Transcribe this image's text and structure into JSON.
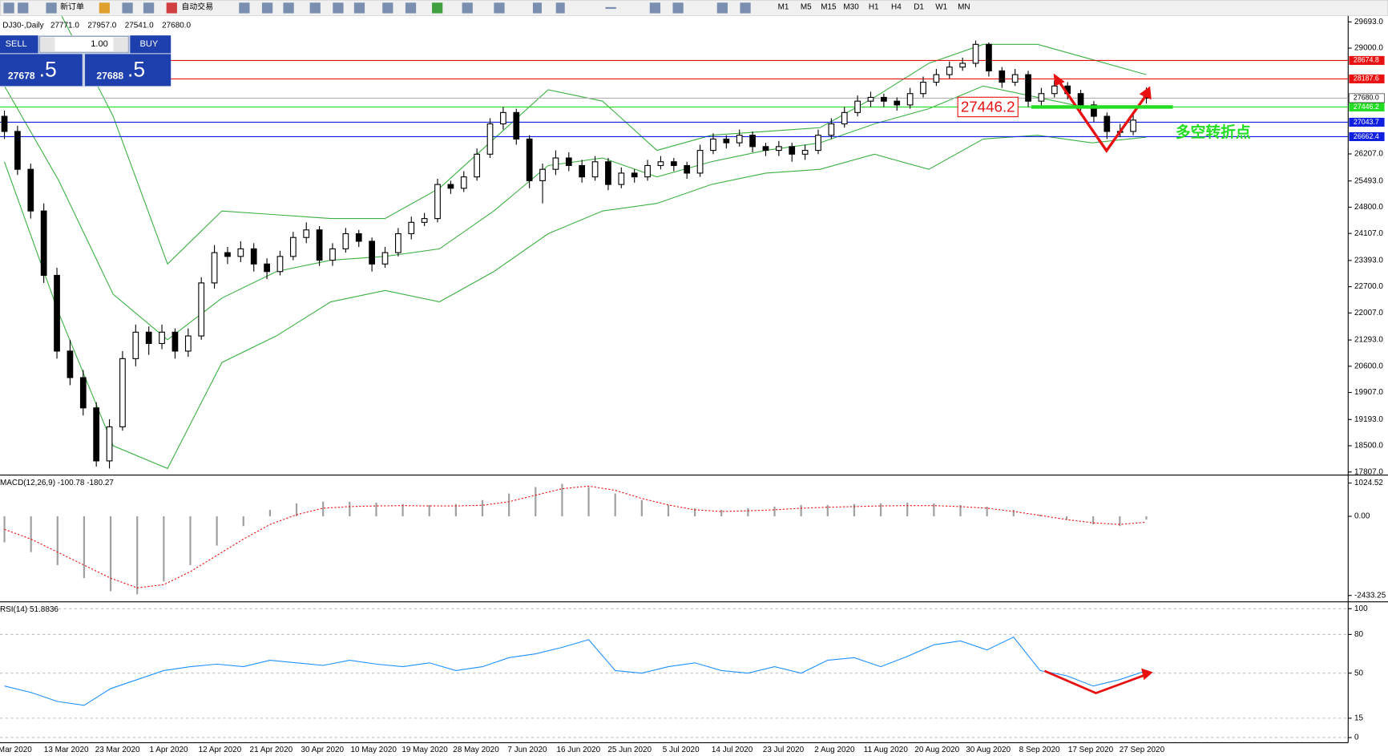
{
  "toolbar": {
    "new_order": "新订单",
    "auto_trading": "自动交易",
    "timeframes": [
      "M1",
      "M5",
      "M15",
      "M30",
      "H1",
      "H4",
      "D1",
      "W1",
      "MN"
    ]
  },
  "trade_panel": {
    "sell": "SELL",
    "buy": "BUY",
    "lots": "1.00",
    "bid": "27678",
    "bid_fraction": ".5",
    "ask": "27688",
    "ask_fraction": ".5"
  },
  "chart_data": [
    {
      "type": "candlestick",
      "title": "DJ30-,Daily",
      "ohlc_labels": [
        {
          "value": 27771,
          "label": "27771.0"
        },
        {
          "value": 27957,
          "label": "27957.0"
        },
        {
          "value": 27541,
          "label": "27541.0"
        },
        {
          "value": 27680,
          "label": "27680.0"
        }
      ],
      "candles": [
        [
          27200,
          27350,
          26600,
          26800
        ],
        [
          26800,
          26950,
          25650,
          25800
        ],
        [
          25800,
          25950,
          24500,
          24700
        ],
        [
          24700,
          24900,
          22800,
          23000
        ],
        [
          23000,
          23200,
          20800,
          21000
        ],
        [
          21000,
          21300,
          20100,
          20300
        ],
        [
          20300,
          20500,
          19300,
          19500
        ],
        [
          19500,
          19650,
          17950,
          18100
        ],
        [
          18100,
          19200,
          17900,
          19000
        ],
        [
          19000,
          21000,
          18900,
          20800
        ],
        [
          20800,
          21700,
          20600,
          21500
        ],
        [
          21500,
          21650,
          20900,
          21200
        ],
        [
          21200,
          21700,
          21050,
          21500
        ],
        [
          21500,
          21600,
          20800,
          21000
        ],
        [
          21000,
          21600,
          20850,
          21400
        ],
        [
          21400,
          22950,
          21300,
          22800
        ],
        [
          22800,
          23800,
          22650,
          23600
        ],
        [
          23600,
          23750,
          23300,
          23500
        ],
        [
          23500,
          23900,
          23350,
          23700
        ],
        [
          23700,
          23850,
          23100,
          23300
        ],
        [
          23300,
          23450,
          22900,
          23100
        ],
        [
          23100,
          23650,
          23000,
          23500
        ],
        [
          23500,
          24150,
          23400,
          24000
        ],
        [
          24000,
          24400,
          23850,
          24200
        ],
        [
          24200,
          24300,
          23250,
          23400
        ],
        [
          23400,
          23850,
          23250,
          23700
        ],
        [
          23700,
          24250,
          23600,
          24100
        ],
        [
          24100,
          24200,
          23750,
          23900
        ],
        [
          23900,
          24000,
          23100,
          23300
        ],
        [
          23300,
          23750,
          23200,
          23600
        ],
        [
          23600,
          24250,
          23500,
          24100
        ],
        [
          24100,
          24550,
          23950,
          24400
        ],
        [
          24400,
          24650,
          24300,
          24500
        ],
        [
          24500,
          25550,
          24400,
          25400
        ],
        [
          25400,
          25500,
          25150,
          25300
        ],
        [
          25300,
          25750,
          25200,
          25600
        ],
        [
          25600,
          26350,
          25500,
          26200
        ],
        [
          26200,
          27150,
          26100,
          27000
        ],
        [
          27000,
          27450,
          26850,
          27300
        ],
        [
          27300,
          27400,
          26450,
          26600
        ],
        [
          26600,
          26700,
          25300,
          25500
        ],
        [
          25500,
          25950,
          24900,
          25800
        ],
        [
          25800,
          26300,
          25650,
          26100
        ],
        [
          26100,
          26250,
          25750,
          25900
        ],
        [
          25900,
          26050,
          25450,
          25600
        ],
        [
          25600,
          26150,
          25500,
          26000
        ],
        [
          26000,
          26100,
          25250,
          25400
        ],
        [
          25400,
          25850,
          25300,
          25700
        ],
        [
          25700,
          25800,
          25450,
          25600
        ],
        [
          25600,
          26050,
          25500,
          25900
        ],
        [
          25900,
          26150,
          25800,
          26000
        ],
        [
          26000,
          26100,
          25750,
          25900
        ],
        [
          25900,
          26000,
          25550,
          25700
        ],
        [
          25700,
          26450,
          25600,
          26300
        ],
        [
          26300,
          26750,
          26200,
          26600
        ],
        [
          26600,
          26700,
          26350,
          26500
        ],
        [
          26500,
          26850,
          26400,
          26700
        ],
        [
          26700,
          26800,
          26250,
          26400
        ],
        [
          26400,
          26500,
          26150,
          26300
        ],
        [
          26300,
          26550,
          26150,
          26400
        ],
        [
          26400,
          26500,
          26000,
          26200
        ],
        [
          26200,
          26450,
          26050,
          26300
        ],
        [
          26300,
          26850,
          26200,
          26700
        ],
        [
          26700,
          27150,
          26600,
          27000
        ],
        [
          27000,
          27450,
          26900,
          27300
        ],
        [
          27300,
          27750,
          27200,
          27600
        ],
        [
          27600,
          27850,
          27450,
          27700
        ],
        [
          27700,
          27800,
          27450,
          27600
        ],
        [
          27600,
          27700,
          27350,
          27500
        ],
        [
          27500,
          27950,
          27400,
          27800
        ],
        [
          27800,
          28250,
          27700,
          28100
        ],
        [
          28100,
          28450,
          28000,
          28300
        ],
        [
          28300,
          28650,
          28200,
          28500
        ],
        [
          28500,
          28750,
          28400,
          28600
        ],
        [
          28600,
          29200,
          28500,
          29100
        ],
        [
          29100,
          29150,
          28250,
          28400
        ],
        [
          28400,
          28500,
          27950,
          28100
        ],
        [
          28100,
          28450,
          28000,
          28300
        ],
        [
          28300,
          28400,
          27450,
          27600
        ],
        [
          27600,
          27950,
          27450,
          27800
        ],
        [
          27800,
          28150,
          27700,
          28000
        ],
        [
          28000,
          28100,
          27650,
          27800
        ],
        [
          27800,
          27900,
          27350,
          27500
        ],
        [
          27500,
          27600,
          27050,
          27200
        ],
        [
          27200,
          27300,
          26600,
          26800
        ],
        [
          26800,
          27000,
          26650,
          26800
        ],
        [
          26800,
          27250,
          26700,
          27100
        ],
        [
          27771,
          27957,
          27541,
          27680
        ]
      ],
      "bollinger": {
        "color": "#3cb043",
        "upper": [
          30500,
          30000,
          27200,
          23300,
          24700,
          24600,
          24500,
          24500,
          25300,
          26600,
          27900,
          27600,
          26300,
          26700,
          26800,
          26900,
          27700,
          28600,
          29100,
          29100,
          28700,
          28300
        ],
        "middle": [
          28000,
          25500,
          22500,
          21300,
          22400,
          23100,
          23400,
          23500,
          23700,
          24700,
          25900,
          26100,
          25600,
          26000,
          26300,
          26500,
          27000,
          27400,
          28000,
          27700,
          27400,
          27480
        ],
        "lower": [
          26000,
          22000,
          18500,
          17900,
          20700,
          21400,
          22300,
          22600,
          22300,
          23100,
          24100,
          24700,
          24900,
          25400,
          25700,
          25800,
          26200,
          25800,
          26600,
          26700,
          26500,
          26650
        ]
      },
      "levels": [
        {
          "value": 28674.8,
          "color": "#e81010"
        },
        {
          "value": 28187.6,
          "color": "#e81010"
        },
        {
          "value": 27446.2,
          "color": "#22dd22"
        },
        {
          "value": 27043.7,
          "color": "#1020e0"
        },
        {
          "value": 26662.4,
          "color": "#1020e0"
        },
        {
          "value": 27680,
          "label": "27680.0",
          "color": "#b0b0b0"
        }
      ],
      "annotation": {
        "text": "多空转折点",
        "color": "#22dd22"
      },
      "ylim": [
        17750,
        29850
      ],
      "yticks": [
        {
          "value": 29693,
          "label": "29693.0"
        },
        {
          "value": 29000,
          "label": "29000.0"
        },
        {
          "value": 26207,
          "label": "26207.0"
        },
        {
          "value": 25493,
          "label": "25493.0"
        },
        {
          "value": 24800,
          "label": "24800.0"
        },
        {
          "value": 24107,
          "label": "24107.0"
        },
        {
          "value": 23393,
          "label": "23393.0"
        },
        {
          "value": 22700,
          "label": "22700.0"
        },
        {
          "value": 22007,
          "label": "22007.0"
        },
        {
          "value": 21293,
          "label": "21293.0"
        },
        {
          "value": 20600,
          "label": "20600.0"
        },
        {
          "value": 19907,
          "label": "19907.0"
        },
        {
          "value": 19193,
          "label": "19193.0"
        },
        {
          "value": 18500,
          "label": "18500.0"
        },
        {
          "value": 17807,
          "label": "17807.0"
        }
      ],
      "xtick_labels": [
        "Mar 2020",
        "13 Mar 2020",
        "23 Mar 2020",
        "1 Apr 2020",
        "12 Apr 2020",
        "21 Apr 2020",
        "30 Apr 2020",
        "10 May 2020",
        "19 May 2020",
        "28 May 2020",
        "7 Jun 2020",
        "16 Jun 2020",
        "25 Jun 2020",
        "5 Jul 2020",
        "14 Jul 2020",
        "23 Jul 2020",
        "2 Aug 2020",
        "11 Aug 2020",
        "20 Aug 2020",
        "30 Aug 2020",
        "8 Sep 2020",
        "17 Sep 2020",
        "27 Sep 2020"
      ]
    },
    {
      "type": "macd",
      "title": "MACD(12,26,9) -100.78 -180.27",
      "histogram_color": "#a0a0a0",
      "signal_color": "#e81010",
      "histogram": [
        -800,
        -1100,
        -1500,
        -1900,
        -2300,
        -2400,
        -2000,
        -1500,
        -900,
        -300,
        200,
        400,
        450,
        450,
        420,
        380,
        350,
        380,
        500,
        700,
        900,
        1000,
        900,
        700,
        500,
        350,
        250,
        200,
        250,
        300,
        350,
        350,
        380,
        400,
        420,
        400,
        350,
        300,
        200,
        50,
        -100,
        -250,
        -300,
        -100.78
      ],
      "signal": [
        -400,
        -700,
        -1100,
        -1500,
        -1900,
        -2200,
        -2100,
        -1700,
        -1200,
        -700,
        -250,
        50,
        250,
        300,
        320,
        330,
        320,
        320,
        340,
        450,
        650,
        850,
        930,
        800,
        550,
        350,
        200,
        150,
        170,
        200,
        250,
        280,
        300,
        320,
        330,
        330,
        300,
        250,
        150,
        30,
        -100,
        -200,
        -250,
        -180.27
      ],
      "ylim": [
        -2600,
        1215
      ],
      "yticks": [
        1024.52,
        {
          "value": 0,
          "label": "0.00"
        },
        -2433.25
      ]
    },
    {
      "type": "line",
      "title": "RSI(14) 51.8836",
      "color": "#1e90ff",
      "values": [
        40,
        35,
        28,
        25,
        38,
        45,
        52,
        55,
        57,
        55,
        60,
        58,
        56,
        60,
        57,
        55,
        58,
        52,
        55,
        62,
        65,
        70,
        76,
        52,
        50,
        55,
        58,
        52,
        50,
        55,
        50,
        60,
        62,
        55,
        63,
        72,
        75,
        68,
        78,
        52,
        48,
        40,
        45,
        51.8836
      ],
      "ylim": [
        -4,
        104
      ],
      "yticks": [
        100,
        80,
        50,
        15,
        0
      ]
    }
  ]
}
